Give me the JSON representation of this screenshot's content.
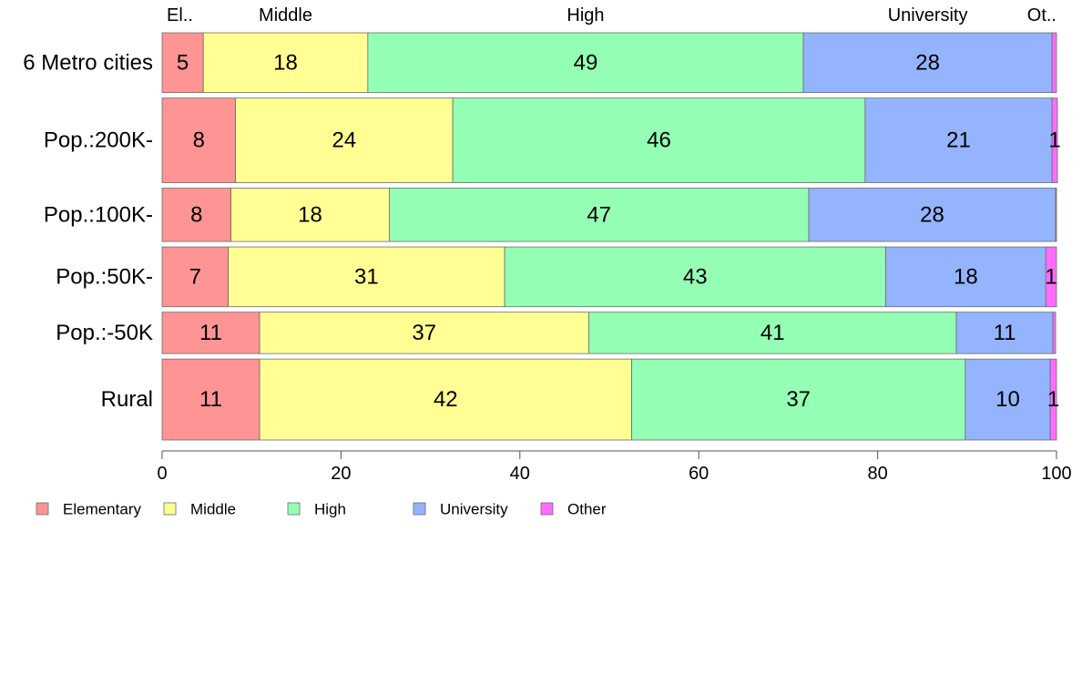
{
  "chart_data": {
    "type": "bar",
    "orientation": "horizontal",
    "stacked": true,
    "categories": [
      "6 Metro cities",
      "Pop.:200K-",
      "Pop.:100K-",
      "Pop.:50K-",
      "Pop.:-50K",
      "Rural"
    ],
    "column_widths": [
      0.65,
      0.92,
      0.58,
      0.65,
      0.45,
      0.88
    ],
    "series": [
      {
        "name": "Elementary",
        "color": "#FF9494",
        "values": [
          4.6,
          8.2,
          7.7,
          7.4,
          10.9,
          10.9
        ],
        "labels": [
          "5",
          "8",
          "8",
          "7",
          "11",
          "11"
        ]
      },
      {
        "name": "Middle",
        "color": "#FFFF94",
        "values": [
          18.4,
          24.3,
          17.7,
          30.9,
          36.8,
          41.6
        ],
        "labels": [
          "18",
          "24",
          "18",
          "31",
          "37",
          "42"
        ]
      },
      {
        "name": "High",
        "color": "#94FFB4",
        "values": [
          48.7,
          46.1,
          46.9,
          42.6,
          41.1,
          37.3
        ],
        "labels": [
          "49",
          "46",
          "47",
          "43",
          "41",
          "37"
        ]
      },
      {
        "name": "University",
        "color": "#94B4FF",
        "values": [
          27.8,
          20.9,
          27.6,
          17.9,
          10.8,
          9.5
        ],
        "labels": [
          "28",
          "21",
          "28",
          "18",
          "11",
          "10"
        ]
      },
      {
        "name": "Other",
        "color": "#FF6CFF",
        "values": [
          0.5,
          0.6,
          0.1,
          1.2,
          0.3,
          0.7
        ],
        "labels": [
          "",
          "1",
          "",
          "1",
          "",
          "1"
        ]
      }
    ],
    "top_labels": [
      "El..",
      "Middle",
      "High",
      "University",
      "Ot.."
    ],
    "xlim": [
      0,
      100
    ],
    "xticks": [
      "0",
      "20",
      "40",
      "60",
      "80",
      "100"
    ],
    "legend": [
      "Elementary",
      "Middle",
      "High",
      "University",
      "Other"
    ],
    "legend_position": "bottom-left",
    "grid": false
  }
}
